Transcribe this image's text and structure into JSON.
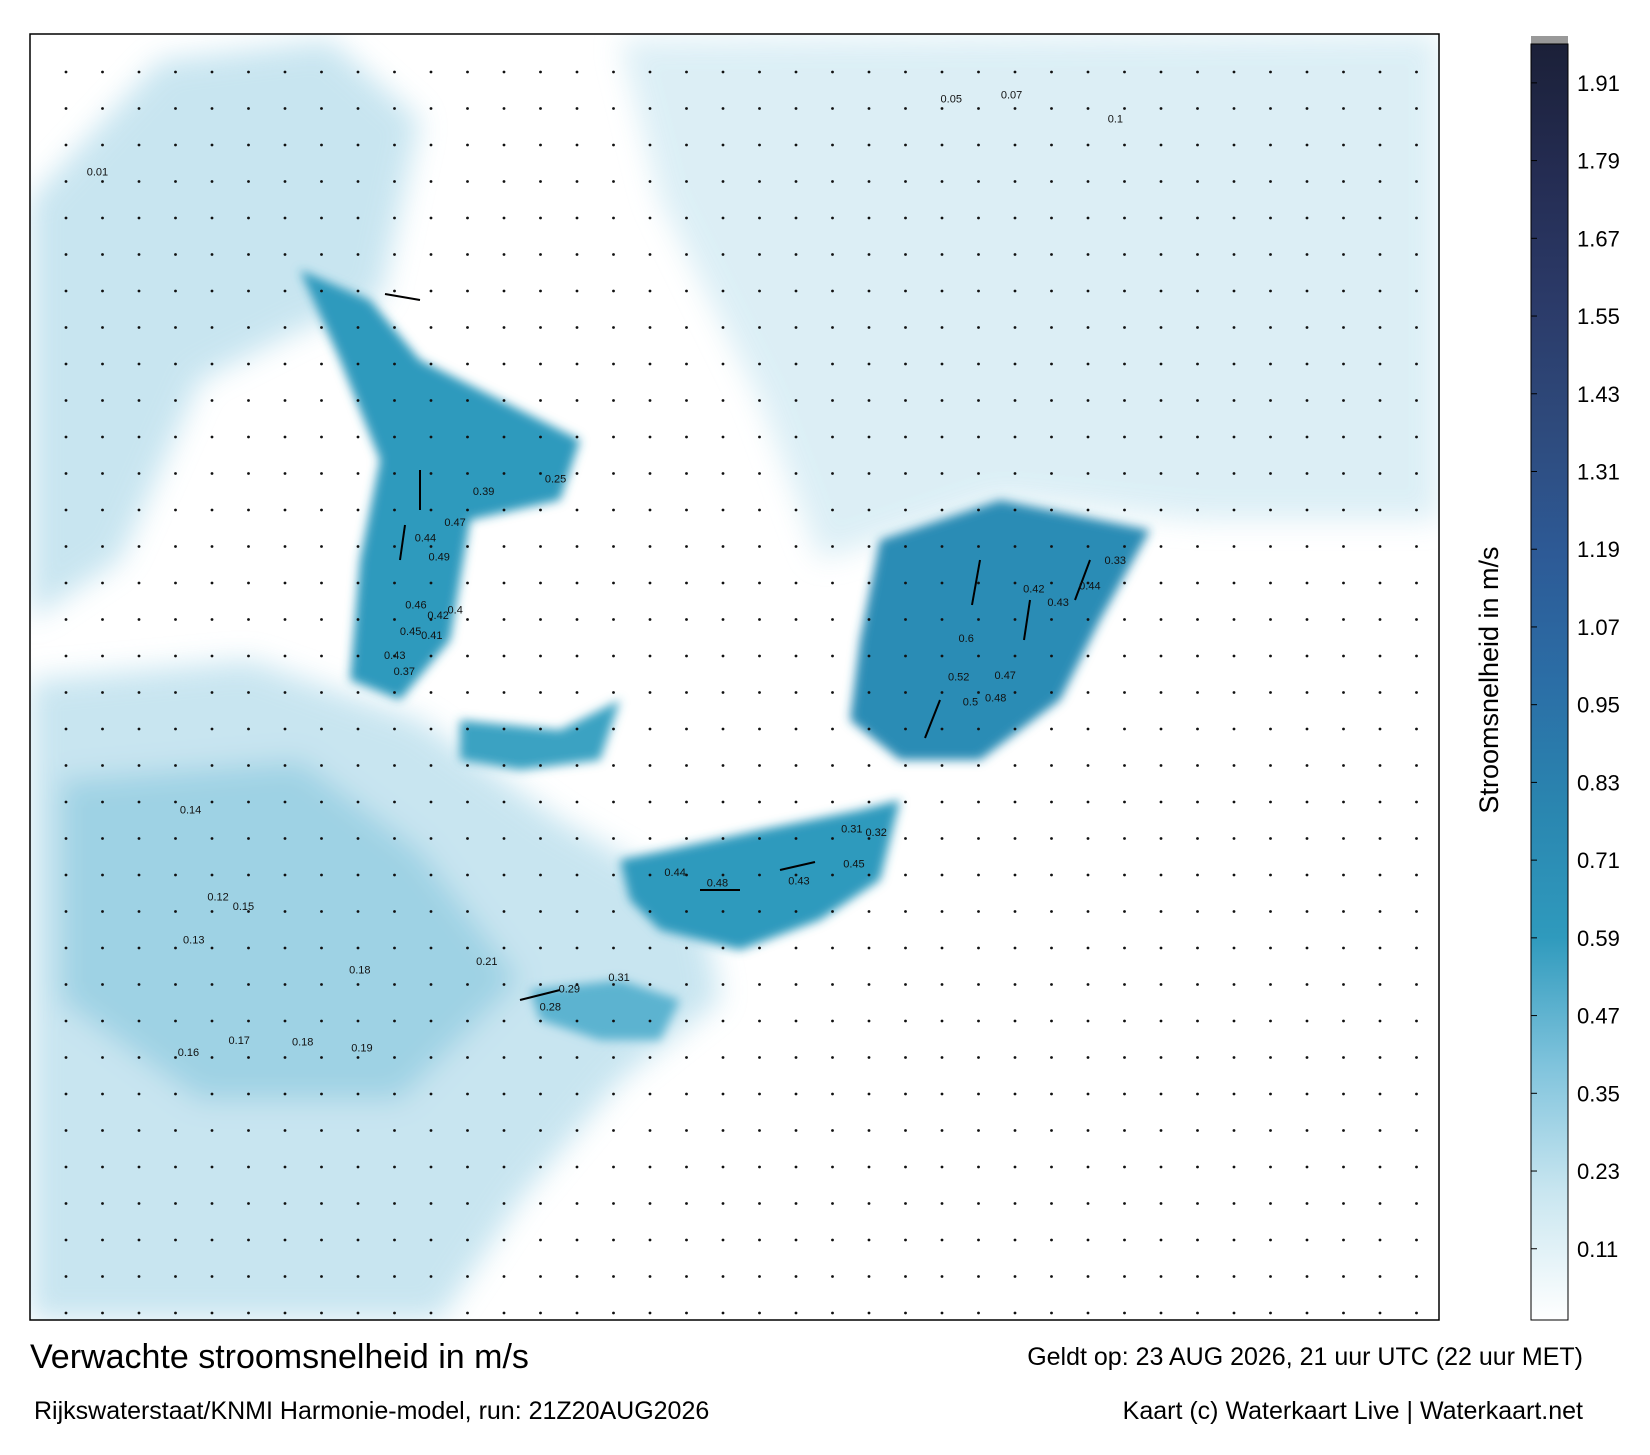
{
  "title": "Verwachte stroomsnelheid in m/s",
  "valid_time": "Geldt op: 23 AUG 2026, 21 uur UTC (22 uur MET)",
  "model_run": "Rijkswaterstaat/KNMI Harmonie-model, run: 21Z20AUG2026",
  "credit": "Kaart (c) Waterkaart Live | Waterkaart.net",
  "chart_data": {
    "type": "colorbar",
    "ylabel": "Stroomsnelheid in m/s",
    "ylim": [
      0,
      1.97
    ],
    "yticks": [
      0.11,
      0.23,
      0.35,
      0.47,
      0.59,
      0.71,
      0.83,
      0.95,
      1.07,
      1.19,
      1.31,
      1.43,
      1.55,
      1.67,
      1.79,
      1.91
    ],
    "colorscale": [
      "#ffffff",
      "#c9e6f0",
      "#7fc3dc",
      "#2f9abd",
      "#2a86b0",
      "#2b6ea6",
      "#2d5a96",
      "#2e4a7c",
      "#2b3a68",
      "#242c52",
      "#1b2038"
    ],
    "current_labels": [
      0.49,
      0.47,
      0.44,
      0.46,
      0.42,
      0.4,
      0.45,
      0.41,
      0.43,
      0.37,
      0.39,
      0.25,
      0.33,
      0.44,
      0.42,
      0.43,
      0.47,
      0.48,
      0.5,
      0.52,
      0.6,
      0.44,
      0.48,
      0.43,
      0.45,
      0.31,
      0.32,
      0.29,
      0.31,
      0.28,
      0.18,
      0.21,
      0.17,
      0.18,
      0.19,
      0.16,
      0.12,
      0.15,
      0.14,
      0.13,
      0.01,
      0.05,
      0.07,
      0.1
    ]
  }
}
